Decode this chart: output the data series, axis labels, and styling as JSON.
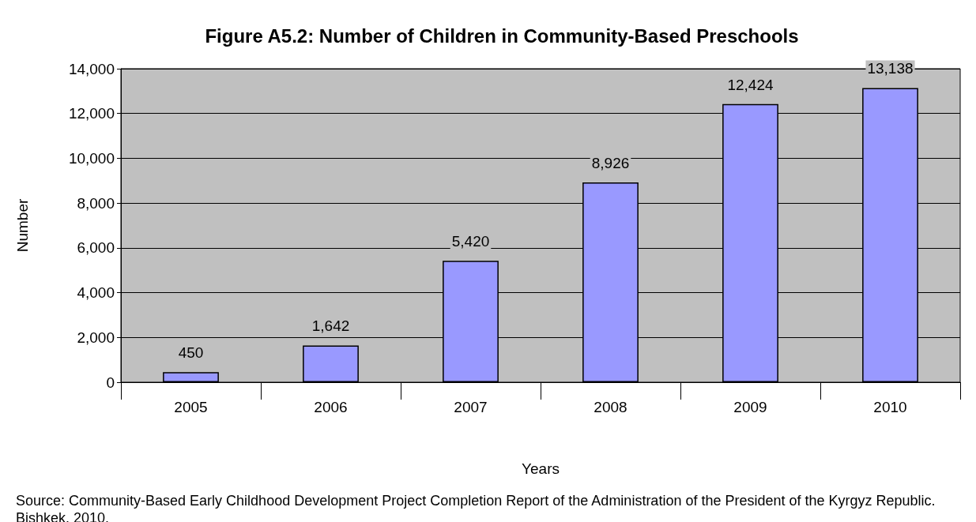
{
  "chart_data": {
    "type": "bar",
    "title": "Figure A5.2: Number of Children in Community-Based Preschools",
    "xlabel": "Years",
    "ylabel": "Number",
    "categories": [
      "2005",
      "2006",
      "2007",
      "2008",
      "2009",
      "2010"
    ],
    "values": [
      450,
      1642,
      5420,
      8926,
      12424,
      13138
    ],
    "color": "#9999ff",
    "value_labels": [
      "450",
      "1,642",
      "5,420",
      "8,926",
      "12,424",
      "13,138"
    ],
    "ylim": [
      0,
      14000
    ],
    "yticks": [
      0,
      {
        "value": 2000,
        "label": "2,000"
      },
      {
        "value": 4000,
        "label": "4,000"
      },
      {
        "value": 6000,
        "label": "6,000"
      },
      {
        "value": 8000,
        "label": "8,000"
      },
      {
        "value": 10000,
        "label": "10,000"
      },
      {
        "value": 12000,
        "label": "12,000"
      },
      {
        "value": 14000,
        "label": "14,000"
      }
    ],
    "grid": "y",
    "annotations": [
      "Source: Community-Based Early Childhood Development Project Completion Report of the Administration of the President of the Kyrgyz Republic. Bishkek. 2010."
    ]
  }
}
